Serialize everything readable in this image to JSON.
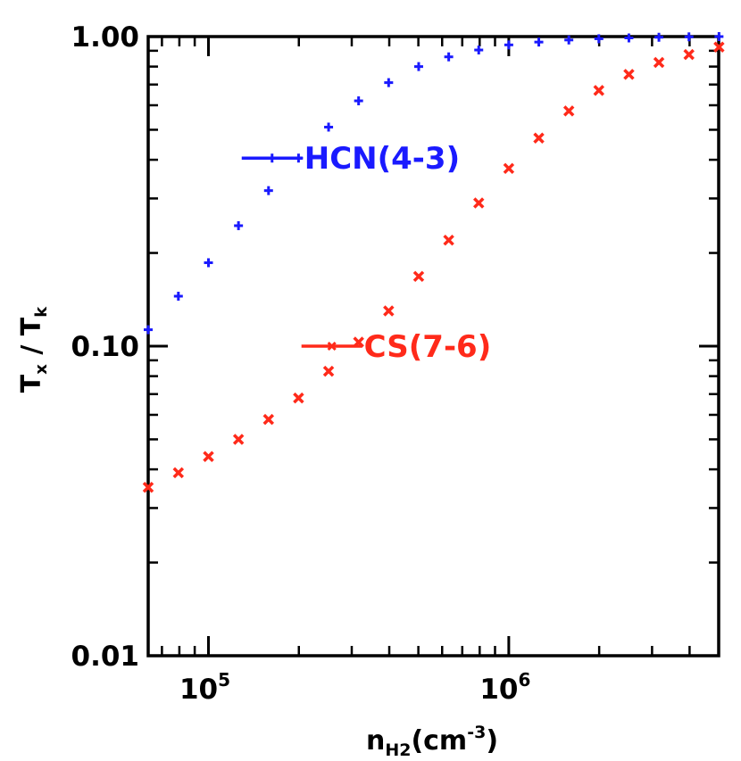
{
  "chart_data": {
    "type": "scatter",
    "xlabel": {
      "main": "n",
      "sub": "H2",
      "rest": "(cm",
      "sup": "-3",
      "close": ")"
    },
    "ylabel": {
      "t1": "T",
      "s1": "x",
      "slash": " / ",
      "t2": "T",
      "s2": "k"
    },
    "x_scale": "log",
    "y_scale": "log",
    "xlim": [
      63000,
      5000000
    ],
    "ylim": [
      0.01,
      1.0
    ],
    "x_ticks": [
      {
        "value": 100000,
        "base": "10",
        "exp": "5"
      },
      {
        "value": 1000000,
        "base": "10",
        "exp": "6"
      }
    ],
    "y_ticks": [
      {
        "value": 0.01,
        "label": "0.01"
      },
      {
        "value": 0.1,
        "label": "0.10"
      },
      {
        "value": 1.0,
        "label": "1.00"
      }
    ],
    "series": [
      {
        "name": "HCN(4-3)",
        "marker": "plus",
        "color": "#1a1aff",
        "label_anchor": {
          "x": 200000,
          "y": 0.405
        },
        "x": [
          63000,
          79400,
          100000,
          125900,
          158500,
          199500,
          251200,
          316200,
          398100,
          501200,
          631000,
          794300,
          1000000,
          1259000,
          1585000,
          1995000,
          2512000,
          3162000,
          3981000,
          5012000
        ],
        "y": [
          0.113,
          0.145,
          0.186,
          0.245,
          0.318,
          0.405,
          0.51,
          0.62,
          0.71,
          0.8,
          0.86,
          0.905,
          0.94,
          0.96,
          0.975,
          0.984,
          0.99,
          0.995,
          0.998,
          1.0
        ]
      },
      {
        "name": "CS(7-6)",
        "marker": "x",
        "color": "#ff2a1a",
        "label_anchor": {
          "x": 316200,
          "y": 0.1
        },
        "x": [
          63000,
          79400,
          100000,
          125900,
          158500,
          199500,
          251200,
          316200,
          398100,
          501200,
          631000,
          794300,
          1000000,
          1259000,
          1585000,
          1995000,
          2512000,
          3162000,
          3981000,
          5012000
        ],
        "y": [
          0.035,
          0.039,
          0.044,
          0.05,
          0.058,
          0.068,
          0.083,
          0.103,
          0.13,
          0.168,
          0.22,
          0.29,
          0.375,
          0.47,
          0.575,
          0.67,
          0.755,
          0.825,
          0.875,
          0.925
        ]
      }
    ]
  }
}
